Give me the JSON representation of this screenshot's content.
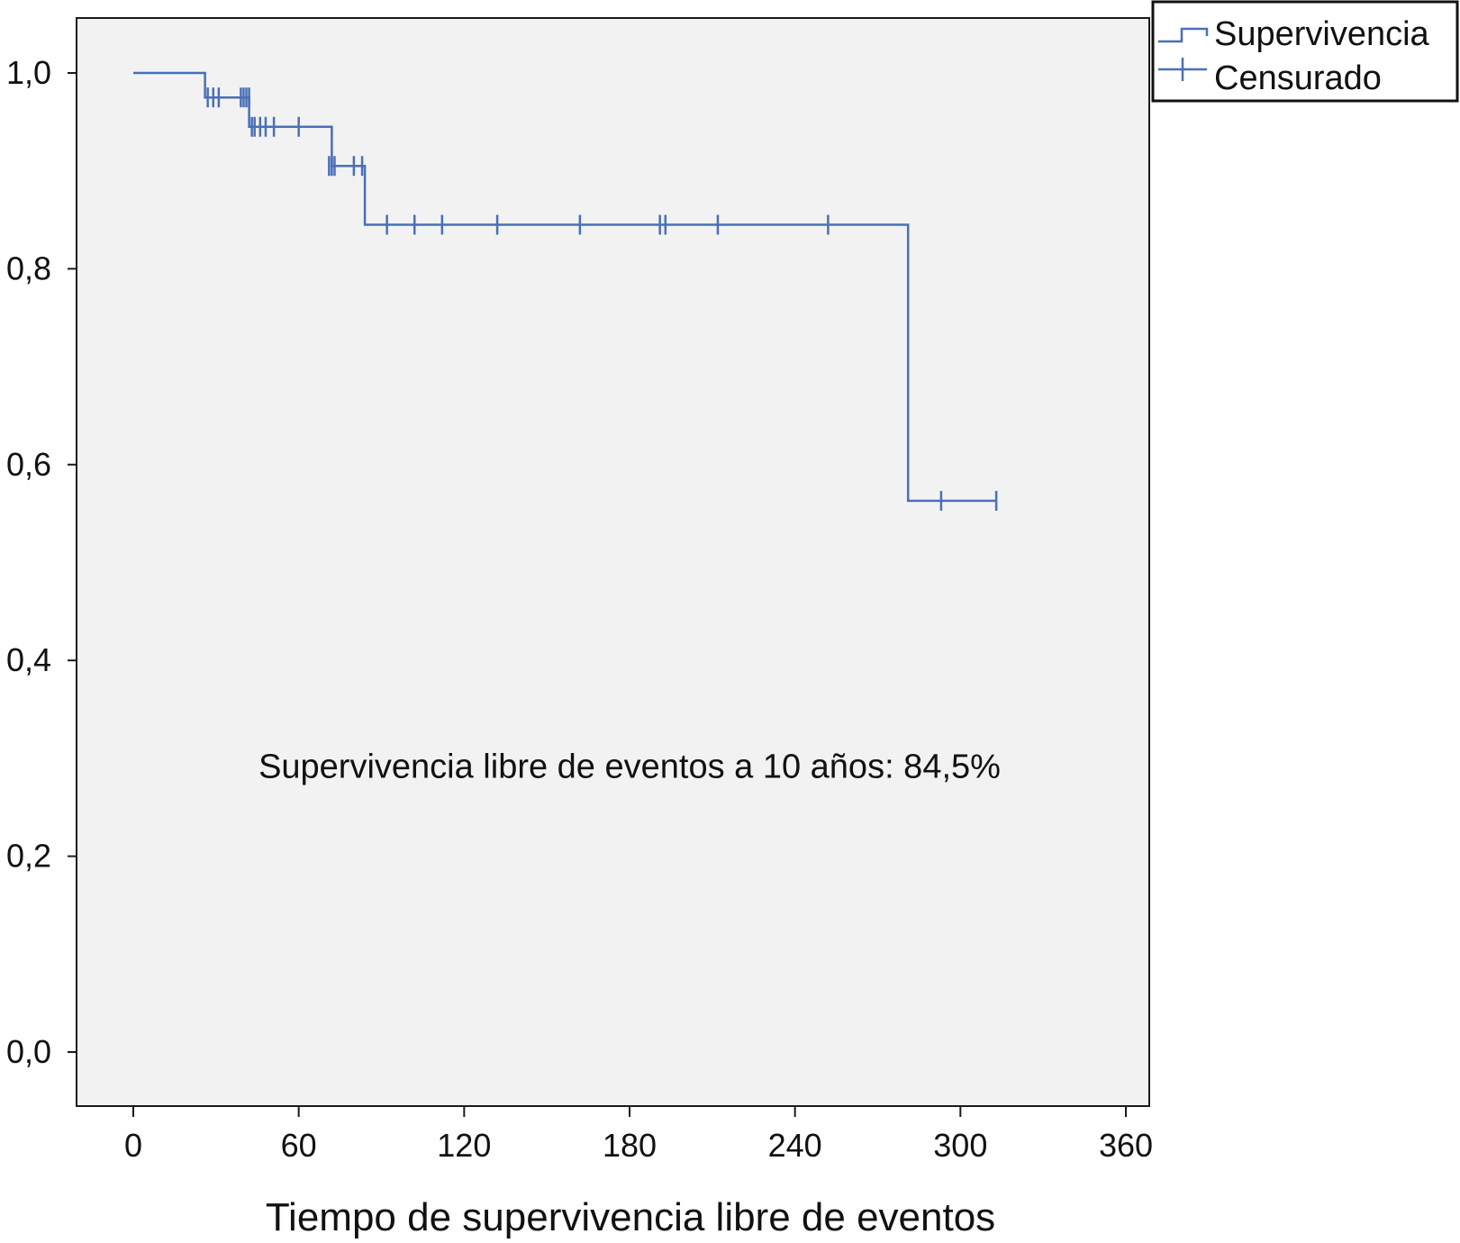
{
  "chart_data": {
    "type": "line",
    "subtype": "kaplan-meier-step",
    "title": "",
    "xlabel": "Tiempo de supervivencia libre de eventos",
    "ylabel": "",
    "xlim": [
      0,
      360
    ],
    "ylim": [
      0.0,
      1.0
    ],
    "x_ticks": [
      0,
      60,
      120,
      180,
      240,
      300,
      360
    ],
    "x_tick_labels": [
      "0",
      "60",
      "120",
      "180",
      "240",
      "300",
      "360"
    ],
    "y_ticks": [
      0.0,
      0.2,
      0.4,
      0.6,
      0.8,
      1.0
    ],
    "y_tick_labels": [
      "0,0",
      "0,2",
      "0,4",
      "0,6",
      "0,8",
      "1,0"
    ],
    "grid": false,
    "plot_background": "#f2f2f2",
    "series": [
      {
        "name": "Supervivencia",
        "color": "#4a6fb8",
        "step_points": [
          {
            "x": 0,
            "y": 1.0
          },
          {
            "x": 26,
            "y": 1.0
          },
          {
            "x": 26,
            "y": 0.975
          },
          {
            "x": 42,
            "y": 0.975
          },
          {
            "x": 42,
            "y": 0.945
          },
          {
            "x": 72,
            "y": 0.945
          },
          {
            "x": 72,
            "y": 0.905
          },
          {
            "x": 84,
            "y": 0.905
          },
          {
            "x": 84,
            "y": 0.845
          },
          {
            "x": 281,
            "y": 0.845
          },
          {
            "x": 281,
            "y": 0.563
          },
          {
            "x": 313,
            "y": 0.563
          }
        ]
      },
      {
        "name": "Censurado",
        "color": "#4a6fb8",
        "censored_points": [
          {
            "x": 27,
            "y": 0.975
          },
          {
            "x": 29,
            "y": 0.975
          },
          {
            "x": 31,
            "y": 0.975
          },
          {
            "x": 39,
            "y": 0.975
          },
          {
            "x": 40,
            "y": 0.975
          },
          {
            "x": 41,
            "y": 0.975
          },
          {
            "x": 42,
            "y": 0.975
          },
          {
            "x": 43,
            "y": 0.945
          },
          {
            "x": 44,
            "y": 0.945
          },
          {
            "x": 46,
            "y": 0.945
          },
          {
            "x": 48,
            "y": 0.945
          },
          {
            "x": 51,
            "y": 0.945
          },
          {
            "x": 60,
            "y": 0.945
          },
          {
            "x": 71,
            "y": 0.905
          },
          {
            "x": 72,
            "y": 0.905
          },
          {
            "x": 73,
            "y": 0.905
          },
          {
            "x": 80,
            "y": 0.905
          },
          {
            "x": 83,
            "y": 0.905
          },
          {
            "x": 92,
            "y": 0.845
          },
          {
            "x": 102,
            "y": 0.845
          },
          {
            "x": 112,
            "y": 0.845
          },
          {
            "x": 132,
            "y": 0.845
          },
          {
            "x": 162,
            "y": 0.845
          },
          {
            "x": 191,
            "y": 0.845
          },
          {
            "x": 193,
            "y": 0.845
          },
          {
            "x": 212,
            "y": 0.845
          },
          {
            "x": 252,
            "y": 0.845
          },
          {
            "x": 293,
            "y": 0.563
          },
          {
            "x": 313,
            "y": 0.563
          }
        ]
      }
    ],
    "legend": {
      "placement": "top-right",
      "entries": [
        "Supervivencia",
        "Censurado"
      ]
    },
    "annotations": [
      {
        "text": "Supervivencia libre de eventos a 10 años: 84,5%",
        "x": 180,
        "y": 0.28
      }
    ]
  }
}
